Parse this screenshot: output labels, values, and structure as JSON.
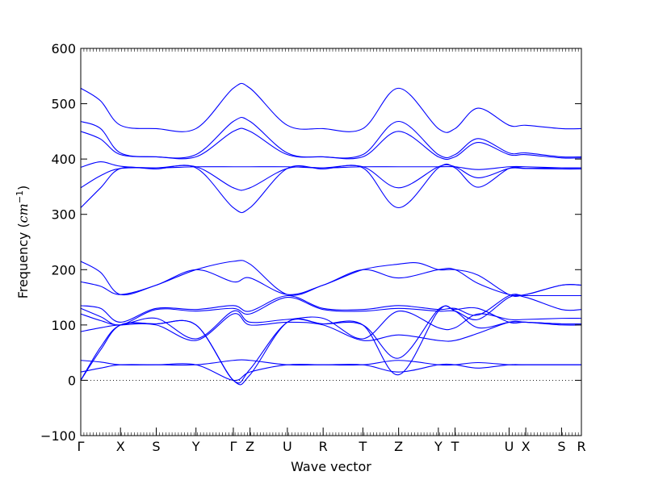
{
  "chart_data": {
    "type": "line",
    "title": "",
    "xlabel": "Wave vector",
    "ylabel_prefix": "Frequency (",
    "ylabel_math": "cm",
    "ylabel_exp": "−1",
    "ylabel_suffix": ")",
    "ylim": [
      -100,
      600
    ],
    "yticks": [
      -100,
      0,
      100,
      200,
      300,
      400,
      500,
      600
    ],
    "xlim": [
      0,
      12.6
    ],
    "grid": false,
    "line_color": "#0000ff",
    "zero_line": {
      "value": 0,
      "style": "dotted"
    },
    "xticks": [
      {
        "label": "Γ",
        "x": 0
      },
      {
        "label": "X",
        "x": 1
      },
      {
        "label": "S",
        "x": 1.9
      },
      {
        "label": "Y",
        "x": 2.9
      },
      {
        "label": "Γ",
        "x": 3.84
      },
      {
        "label": "Z",
        "x": 4.26
      },
      {
        "label": "U",
        "x": 5.2
      },
      {
        "label": "R",
        "x": 6.1
      },
      {
        "label": "T",
        "x": 7.1
      },
      {
        "label": "Z",
        "x": 8.0
      },
      {
        "label": "Y",
        "x": 9.0
      },
      {
        "label": "T",
        "x": 9.42
      },
      {
        "label": "U",
        "x": 10.78
      },
      {
        "label": "X",
        "x": 11.2
      },
      {
        "label": "S",
        "x": 12.1
      },
      {
        "label": "R",
        "x": 12.6
      }
    ],
    "series": [
      {
        "values": [
          [
            0,
            528
          ],
          [
            0.5,
            505
          ],
          [
            1,
            461
          ],
          [
            1.9,
            455
          ],
          [
            2.9,
            455
          ],
          [
            3.84,
            528
          ],
          [
            4.26,
            528
          ],
          [
            5.2,
            461
          ],
          [
            6.1,
            455
          ],
          [
            7.1,
            455
          ],
          [
            8.0,
            528
          ],
          [
            9.0,
            455
          ],
          [
            9.42,
            455
          ],
          [
            10.0,
            492
          ],
          [
            10.78,
            461
          ],
          [
            11.2,
            461
          ],
          [
            12.1,
            455
          ],
          [
            12.6,
            455
          ]
        ]
      },
      {
        "values": [
          [
            0,
            468
          ],
          [
            0.5,
            455
          ],
          [
            1,
            411
          ],
          [
            1.9,
            404
          ],
          [
            2.9,
            408
          ],
          [
            3.84,
            468
          ],
          [
            4.26,
            468
          ],
          [
            5.2,
            411
          ],
          [
            6.1,
            404
          ],
          [
            7.1,
            408
          ],
          [
            8.0,
            468
          ],
          [
            9.0,
            408
          ],
          [
            9.42,
            408
          ],
          [
            10.0,
            437
          ],
          [
            10.78,
            411
          ],
          [
            11.2,
            411
          ],
          [
            12.1,
            404
          ],
          [
            12.6,
            404
          ]
        ]
      },
      {
        "values": [
          [
            0,
            450
          ],
          [
            0.5,
            436
          ],
          [
            1,
            408
          ],
          [
            1.9,
            404
          ],
          [
            2.9,
            404
          ],
          [
            3.84,
            450
          ],
          [
            4.26,
            450
          ],
          [
            5.2,
            408
          ],
          [
            6.1,
            404
          ],
          [
            7.1,
            404
          ],
          [
            8.0,
            450
          ],
          [
            9.0,
            404
          ],
          [
            9.42,
            404
          ],
          [
            10.0,
            430
          ],
          [
            10.78,
            408
          ],
          [
            11.2,
            408
          ],
          [
            12.1,
            402
          ],
          [
            12.6,
            402
          ]
        ]
      },
      {
        "values": [
          [
            0,
            385
          ],
          [
            0.5,
            395
          ],
          [
            1,
            387
          ],
          [
            1.9,
            384
          ],
          [
            2.9,
            386
          ],
          [
            3.84,
            386
          ],
          [
            4.26,
            386
          ],
          [
            5.2,
            386
          ],
          [
            6.1,
            384
          ],
          [
            7.1,
            386
          ],
          [
            8.0,
            386
          ],
          [
            9.0,
            386
          ],
          [
            9.42,
            386
          ],
          [
            10.0,
            381
          ],
          [
            10.78,
            386
          ],
          [
            11.2,
            386
          ],
          [
            12.1,
            384
          ],
          [
            12.6,
            384
          ]
        ]
      },
      {
        "values": [
          [
            0,
            348
          ],
          [
            0.5,
            370
          ],
          [
            1,
            383
          ],
          [
            1.9,
            384
          ],
          [
            2.9,
            386
          ],
          [
            3.84,
            348
          ],
          [
            4.26,
            348
          ],
          [
            5.2,
            383
          ],
          [
            6.1,
            384
          ],
          [
            7.1,
            386
          ],
          [
            8.0,
            348
          ],
          [
            9.0,
            386
          ],
          [
            9.42,
            386
          ],
          [
            10.0,
            366
          ],
          [
            10.78,
            383
          ],
          [
            11.2,
            383
          ],
          [
            12.1,
            384
          ],
          [
            12.6,
            384
          ]
        ]
      },
      {
        "values": [
          [
            0,
            312
          ],
          [
            0.5,
            348
          ],
          [
            1,
            383
          ],
          [
            1.9,
            382
          ],
          [
            2.9,
            384
          ],
          [
            3.84,
            312
          ],
          [
            4.26,
            312
          ],
          [
            5.2,
            383
          ],
          [
            6.1,
            382
          ],
          [
            7.1,
            384
          ],
          [
            8.0,
            312
          ],
          [
            9.0,
            384
          ],
          [
            9.42,
            384
          ],
          [
            10.0,
            349
          ],
          [
            10.78,
            383
          ],
          [
            11.2,
            383
          ],
          [
            12.1,
            382
          ],
          [
            12.6,
            382
          ]
        ]
      },
      {
        "values": [
          [
            0,
            215
          ],
          [
            0.5,
            195
          ],
          [
            1,
            155
          ],
          [
            1.9,
            172
          ],
          [
            2.9,
            200
          ],
          [
            3.84,
            215
          ],
          [
            4.26,
            210
          ],
          [
            5.2,
            155
          ],
          [
            6.1,
            172
          ],
          [
            7.1,
            200
          ],
          [
            8.0,
            210
          ],
          [
            8.5,
            212
          ],
          [
            9.0,
            200
          ],
          [
            9.42,
            200
          ],
          [
            10.0,
            190
          ],
          [
            10.78,
            155
          ],
          [
            11.2,
            155
          ],
          [
            12.1,
            172
          ],
          [
            12.6,
            172
          ]
        ]
      },
      {
        "values": [
          [
            0,
            178
          ],
          [
            0.5,
            170
          ],
          [
            1,
            155
          ],
          [
            1.9,
            172
          ],
          [
            2.9,
            200
          ],
          [
            3.84,
            178
          ],
          [
            4.26,
            185
          ],
          [
            5.2,
            155
          ],
          [
            6.1,
            172
          ],
          [
            7.1,
            200
          ],
          [
            8.0,
            185
          ],
          [
            9.0,
            200
          ],
          [
            9.42,
            200
          ],
          [
            10.0,
            175
          ],
          [
            10.78,
            155
          ],
          [
            11.2,
            155
          ],
          [
            12.1,
            172
          ],
          [
            12.6,
            172
          ]
        ]
      },
      {
        "values": [
          [
            0,
            135
          ],
          [
            0.5,
            130
          ],
          [
            1,
            105
          ],
          [
            1.9,
            130
          ],
          [
            2.9,
            128
          ],
          [
            3.84,
            135
          ],
          [
            4.26,
            125
          ],
          [
            5.2,
            153
          ],
          [
            6.1,
            130
          ],
          [
            7.1,
            128
          ],
          [
            8.0,
            135
          ],
          [
            9.0,
            128
          ],
          [
            9.42,
            130
          ],
          [
            10.0,
            118
          ],
          [
            10.78,
            153
          ],
          [
            11.2,
            153
          ],
          [
            12.1,
            153
          ],
          [
            12.6,
            153
          ]
        ]
      },
      {
        "values": [
          [
            0,
            130
          ],
          [
            0.5,
            115
          ],
          [
            1,
            100
          ],
          [
            1.9,
            128
          ],
          [
            2.9,
            125
          ],
          [
            3.84,
            130
          ],
          [
            4.26,
            120
          ],
          [
            5.2,
            150
          ],
          [
            6.1,
            128
          ],
          [
            7.1,
            125
          ],
          [
            8.0,
            130
          ],
          [
            9.0,
            125
          ],
          [
            9.42,
            125
          ],
          [
            10.0,
            110
          ],
          [
            10.78,
            150
          ],
          [
            11.2,
            150
          ],
          [
            12.1,
            128
          ],
          [
            12.6,
            128
          ]
        ]
      },
      {
        "values": [
          [
            0,
            120
          ],
          [
            0.5,
            108
          ],
          [
            1,
            100
          ],
          [
            1.9,
            112
          ],
          [
            2.9,
            75
          ],
          [
            3.84,
            125
          ],
          [
            4.26,
            105
          ],
          [
            5.2,
            110
          ],
          [
            6.1,
            112
          ],
          [
            7.1,
            75
          ],
          [
            8.0,
            125
          ],
          [
            9.0,
            95
          ],
          [
            9.42,
            95
          ],
          [
            10.0,
            120
          ],
          [
            10.78,
            110
          ],
          [
            11.2,
            110
          ],
          [
            12.1,
            112
          ],
          [
            12.6,
            112
          ]
        ]
      },
      {
        "values": [
          [
            0,
            88
          ],
          [
            0.5,
            95
          ],
          [
            1,
            100
          ],
          [
            1.9,
            100
          ],
          [
            2.9,
            72
          ],
          [
            3.84,
            120
          ],
          [
            4.26,
            100
          ],
          [
            5.2,
            105
          ],
          [
            6.1,
            100
          ],
          [
            7.1,
            72
          ],
          [
            8.0,
            82
          ],
          [
            9.0,
            72
          ],
          [
            9.42,
            72
          ],
          [
            10.0,
            85
          ],
          [
            10.78,
            105
          ],
          [
            11.2,
            105
          ],
          [
            12.1,
            100
          ],
          [
            12.6,
            100
          ]
        ]
      },
      {
        "values": [
          [
            0,
            36
          ],
          [
            0.5,
            33
          ],
          [
            1,
            28
          ],
          [
            1.9,
            28
          ],
          [
            2.9,
            28
          ],
          [
            3.84,
            36
          ],
          [
            4.26,
            36
          ],
          [
            5.2,
            28
          ],
          [
            6.1,
            28
          ],
          [
            7.1,
            28
          ],
          [
            8.0,
            36
          ],
          [
            9.0,
            28
          ],
          [
            9.42,
            28
          ],
          [
            10.0,
            32
          ],
          [
            10.78,
            28
          ],
          [
            11.2,
            28
          ],
          [
            12.1,
            28
          ],
          [
            12.6,
            28
          ]
        ]
      },
      {
        "values": [
          [
            0,
            15
          ],
          [
            0.5,
            22
          ],
          [
            1,
            28
          ],
          [
            1.9,
            28
          ],
          [
            2.9,
            28
          ],
          [
            3.84,
            0
          ],
          [
            4.26,
            15
          ],
          [
            5.2,
            28
          ],
          [
            6.1,
            28
          ],
          [
            7.1,
            28
          ],
          [
            8.0,
            15
          ],
          [
            9.0,
            28
          ],
          [
            9.42,
            28
          ],
          [
            10.0,
            22
          ],
          [
            10.78,
            28
          ],
          [
            11.2,
            28
          ],
          [
            12.1,
            28
          ],
          [
            12.6,
            28
          ]
        ]
      },
      {
        "values": [
          [
            0,
            0
          ],
          [
            0.5,
            60
          ],
          [
            1,
            100
          ],
          [
            1.9,
            102
          ],
          [
            2.9,
            100
          ],
          [
            3.84,
            0
          ],
          [
            4.26,
            10
          ],
          [
            5.2,
            105
          ],
          [
            6.1,
            102
          ],
          [
            7.1,
            100
          ],
          [
            8.0,
            40
          ],
          [
            9.0,
            128
          ],
          [
            9.42,
            128
          ],
          [
            10.0,
            130
          ],
          [
            10.78,
            105
          ],
          [
            11.2,
            105
          ],
          [
            12.1,
            102
          ],
          [
            12.6,
            102
          ]
        ]
      },
      {
        "values": [
          [
            0,
            0
          ],
          [
            0.5,
            55
          ],
          [
            1,
            100
          ],
          [
            1.9,
            102
          ],
          [
            2.9,
            100
          ],
          [
            3.84,
            0
          ],
          [
            4.26,
            20
          ],
          [
            5.2,
            105
          ],
          [
            6.1,
            102
          ],
          [
            7.1,
            100
          ],
          [
            8.0,
            10
          ],
          [
            9.0,
            125
          ],
          [
            9.42,
            125
          ],
          [
            10.0,
            95
          ],
          [
            10.78,
            105
          ],
          [
            11.2,
            105
          ],
          [
            12.1,
            102
          ],
          [
            12.6,
            102
          ]
        ]
      }
    ]
  }
}
